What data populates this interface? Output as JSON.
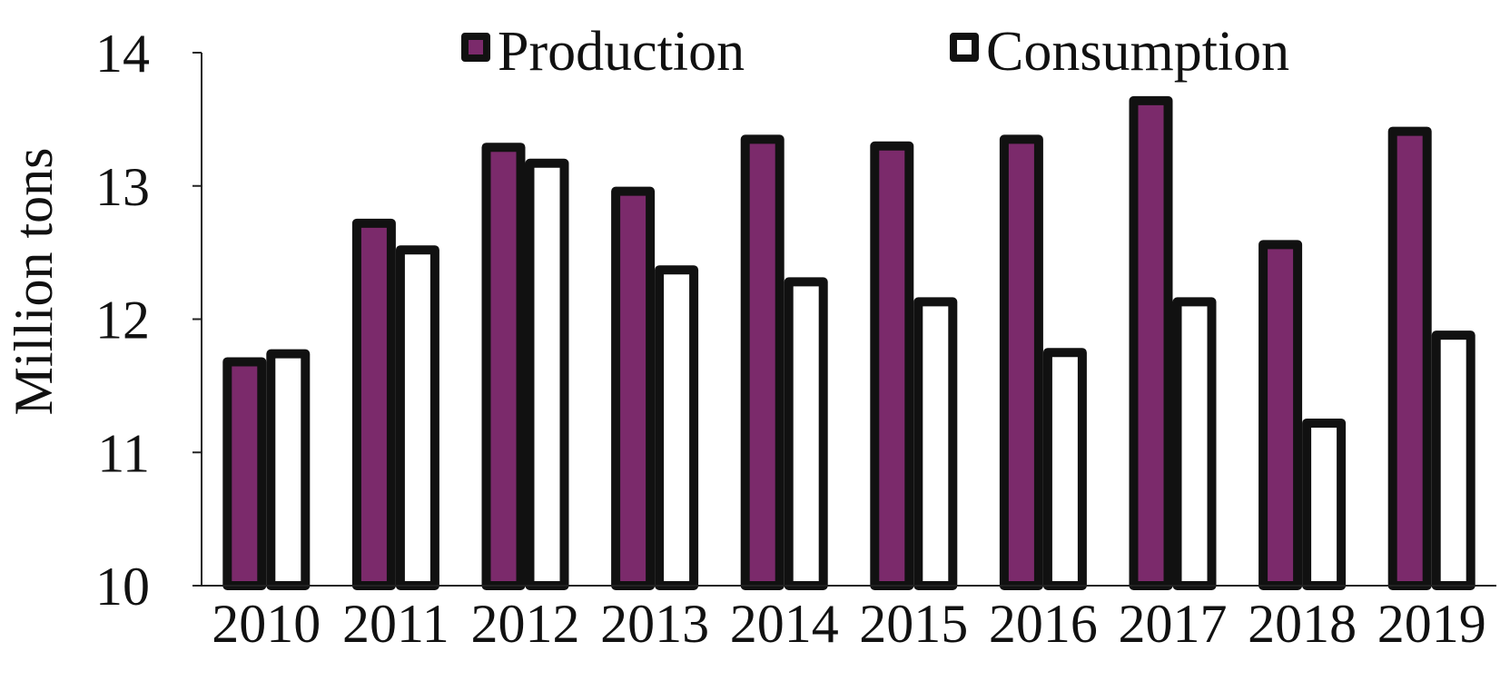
{
  "chart_data": {
    "type": "bar",
    "title": "",
    "xlabel": "",
    "ylabel": "Million tons",
    "ylim": [
      10,
      14
    ],
    "yticks": [
      "10",
      "11",
      "12",
      "13",
      "14"
    ],
    "categories": [
      "2010",
      "2011",
      "2012",
      "2013",
      "2014",
      "2015",
      "2016",
      "2017",
      "2018",
      "2019"
    ],
    "series": [
      {
        "name": "Production",
        "color": "#7b2a6b",
        "values": [
          11.68,
          12.72,
          13.29,
          12.96,
          13.35,
          13.3,
          13.35,
          13.64,
          12.56,
          13.41
        ]
      },
      {
        "name": "Consumption",
        "color": "#ffffff",
        "values": [
          11.74,
          12.52,
          13.17,
          12.37,
          12.28,
          12.13,
          11.75,
          12.13,
          11.22,
          11.88
        ]
      }
    ],
    "grid": false,
    "legend_position": "top"
  }
}
